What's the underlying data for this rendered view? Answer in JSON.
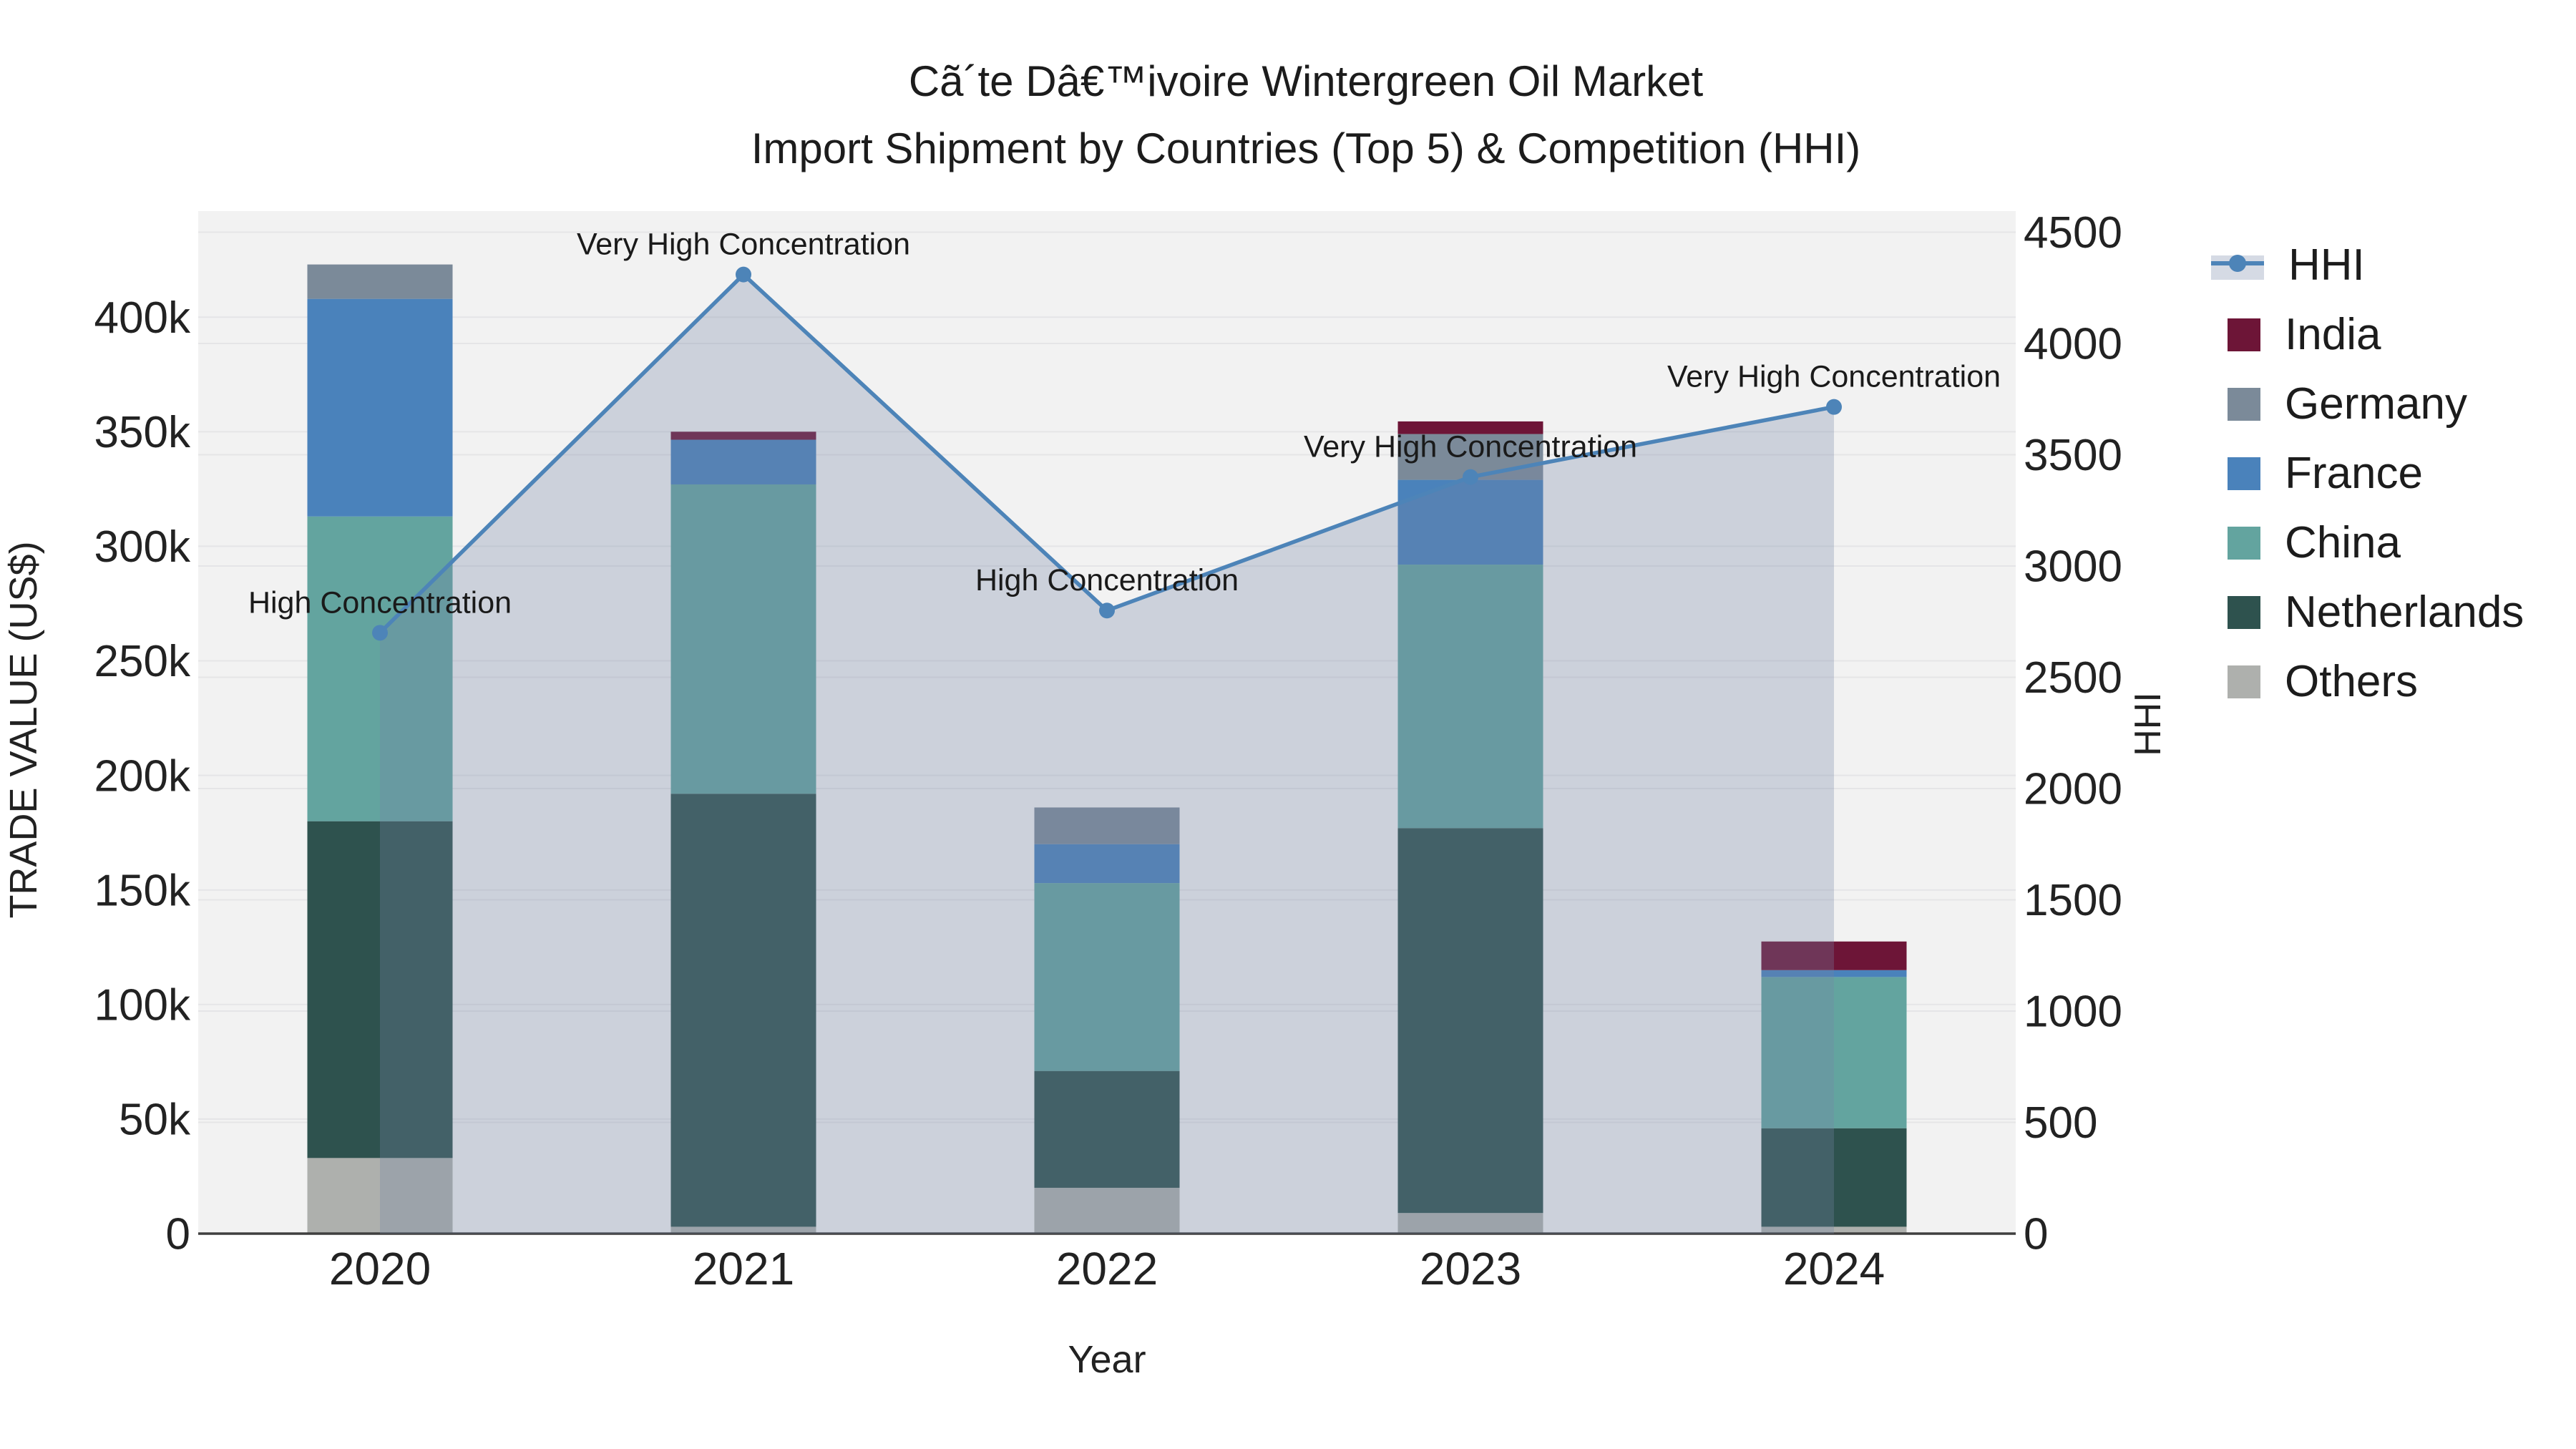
{
  "header": {
    "title_line1": "Cã´te Dâ€™ivoire Wintergreen Oil Market",
    "title_line2": "Import Shipment by Countries (Top 5) & Competition (HHI)"
  },
  "legend": {
    "items": [
      {
        "label": "HHI",
        "type": "line",
        "color": "#4d84b8"
      },
      {
        "label": "India",
        "type": "square",
        "color": "#6d1537"
      },
      {
        "label": "Germany",
        "type": "square",
        "color": "#7b8a99"
      },
      {
        "label": "France",
        "type": "square",
        "color": "#4a82bb"
      },
      {
        "label": "China",
        "type": "square",
        "color": "#63a49f"
      },
      {
        "label": "Netherlands",
        "type": "square",
        "color": "#2e524e"
      },
      {
        "label": "Others",
        "type": "square",
        "color": "#aeb0ad"
      }
    ]
  },
  "chart_data": {
    "type": "bar",
    "subtype": "stacked-bar-with-line",
    "categories": [
      "2020",
      "2021",
      "2022",
      "2023",
      "2024"
    ],
    "series": [
      {
        "name": "Others",
        "color": "#aeb0ad",
        "values": [
          33000,
          3000,
          20000,
          9000,
          3000
        ]
      },
      {
        "name": "Netherlands",
        "color": "#2e524e",
        "values": [
          147000,
          189000,
          51000,
          168000,
          43000
        ]
      },
      {
        "name": "China",
        "color": "#63a49f",
        "values": [
          133000,
          135000,
          82000,
          115000,
          66000
        ]
      },
      {
        "name": "France",
        "color": "#4a82bb",
        "values": [
          95000,
          19500,
          17000,
          37000,
          3000
        ]
      },
      {
        "name": "Germany",
        "color": "#7b8a99",
        "values": [
          15000,
          0,
          16000,
          20000,
          0
        ]
      },
      {
        "name": "India",
        "color": "#6d1537",
        "values": [
          0,
          3500,
          0,
          5500,
          12500
        ]
      }
    ],
    "line_series": {
      "name": "HHI",
      "color": "#4d84b8",
      "area_color": "rgba(116,133,167,0.30)",
      "values": [
        2700,
        4310,
        2800,
        3400,
        3715
      ],
      "annotations": [
        "High Concentration",
        "Very High Concentration",
        "High Concentration",
        "Very High Concentration",
        "Very High Concentration"
      ]
    },
    "left_axis": {
      "title": "TRADE VALUE (US$)",
      "tick_values": [
        0,
        50000,
        100000,
        150000,
        200000,
        250000,
        300000,
        350000,
        400000
      ],
      "tick_labels": [
        "0",
        "50k",
        "100k",
        "150k",
        "200k",
        "250k",
        "300k",
        "350k",
        "400k"
      ],
      "max": 446300
    },
    "right_axis": {
      "title": "HHI",
      "tick_values": [
        0,
        500,
        1000,
        1500,
        2000,
        2500,
        3000,
        3500,
        4000,
        4500
      ],
      "tick_labels": [
        "0",
        "500",
        "1000",
        "1500",
        "2000",
        "2500",
        "3000",
        "3500",
        "4000",
        "4500"
      ],
      "max": 4595
    },
    "x_axis": {
      "title": "Year"
    },
    "grid": true,
    "legend_position": "right",
    "colors": {
      "plot_bg": "#f2f2f2",
      "grid": "#e5e5e7",
      "axis_line": "#3f3f3f",
      "tick_text": "#222222",
      "annotation_text": "#1a1a1a"
    }
  }
}
